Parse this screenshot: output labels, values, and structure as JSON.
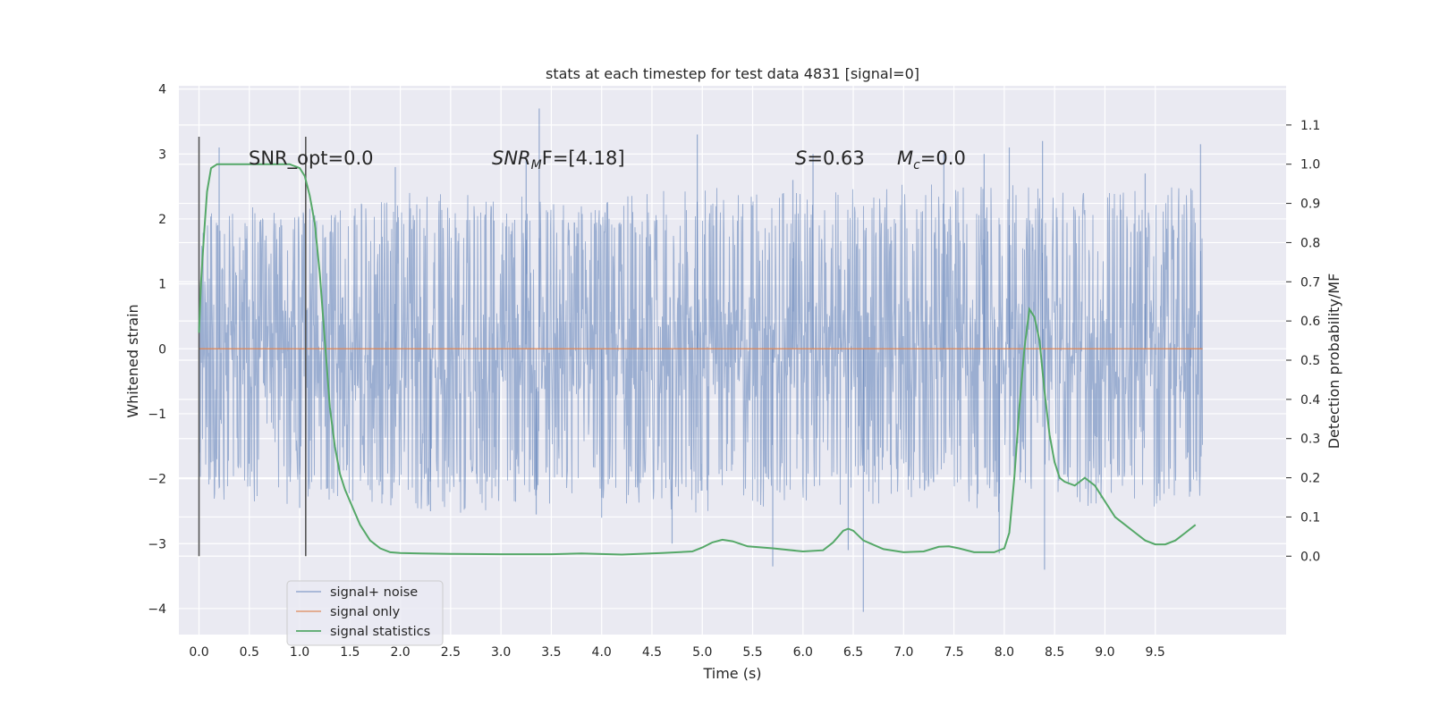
{
  "chart_data": {
    "type": "line",
    "title": "stats at each timestep for test data 4831 [signal=0]",
    "xlabel": "Time (s)",
    "ylabel": "Whitened strain",
    "y2label": "Detection probability/MF",
    "xlim": [
      -0.2,
      10.8
    ],
    "ylim": [
      -4.4,
      4.05
    ],
    "y2lim": [
      -0.2,
      1.2
    ],
    "x_ticks": [
      0.0,
      0.5,
      1.0,
      1.5,
      2.0,
      2.5,
      3.0,
      3.5,
      4.0,
      4.5,
      5.0,
      5.5,
      6.0,
      6.5,
      7.0,
      7.5,
      8.0,
      8.5,
      9.0,
      9.5
    ],
    "x_tick_labels": [
      "0.0",
      "0.5",
      "1.0",
      "1.5",
      "2.0",
      "2.5",
      "3.0",
      "3.5",
      "4.0",
      "4.5",
      "5.0",
      "5.5",
      "6.0",
      "6.5",
      "7.0",
      "7.5",
      "8.0",
      "8.5",
      "9.0",
      "9.5"
    ],
    "y_ticks": [
      -4,
      -3,
      -2,
      -1,
      0,
      1,
      2,
      3,
      4
    ],
    "y_tick_labels": [
      "−4",
      "−3",
      "−2",
      "−1",
      "0",
      "1",
      "2",
      "3",
      "4"
    ],
    "y2_ticks": [
      0.0,
      0.1,
      0.2,
      0.3,
      0.4,
      0.5,
      0.6,
      0.7,
      0.8,
      0.9,
      1.0,
      1.1
    ],
    "y2_tick_labels": [
      "0.0",
      "0.1",
      "0.2",
      "0.3",
      "0.4",
      "0.5",
      "0.6",
      "0.7",
      "0.8",
      "0.9",
      "1.0",
      "1.1"
    ],
    "grid": true,
    "legend_position": "lower-left",
    "annotations": {
      "snr_opt": "SNR_opt=0.0",
      "snr_mf_base": "SNR",
      "snr_mf_sub": "M",
      "snr_mf_rest": "F=[4.18]",
      "s_var": "S",
      "s_val": "=0.63",
      "mc_var": "M",
      "mc_sub": "c",
      "mc_val": "=0.0"
    },
    "vertical_markers": [
      0.0,
      1.06
    ],
    "series": [
      {
        "name": "signal+ noise",
        "color": "#4c72b0",
        "axis": "left",
        "kind": "noise",
        "x_range": [
          0.0,
          9.97
        ],
        "envelope": [
          [
            0.0,
            1.9,
            -2.1
          ],
          [
            1.0,
            2.1,
            -2.2
          ],
          [
            2.0,
            2.2,
            -2.3
          ],
          [
            3.0,
            2.2,
            -2.3
          ],
          [
            4.0,
            2.1,
            -2.2
          ],
          [
            5.0,
            2.3,
            -2.3
          ],
          [
            6.0,
            2.2,
            -2.2
          ],
          [
            7.0,
            2.3,
            -2.2
          ],
          [
            8.0,
            2.3,
            -2.3
          ],
          [
            9.0,
            2.2,
            -2.2
          ],
          [
            9.97,
            2.3,
            -2.3
          ]
        ],
        "spikes": [
          [
            0.2,
            3.1
          ],
          [
            1.0,
            -2.45
          ],
          [
            1.95,
            2.8
          ],
          [
            2.3,
            -2.5
          ],
          [
            3.25,
            2.9
          ],
          [
            3.38,
            3.7
          ],
          [
            3.35,
            -2.55
          ],
          [
            4.0,
            -2.6
          ],
          [
            4.95,
            3.3
          ],
          [
            4.7,
            -3.0
          ],
          [
            5.9,
            2.6
          ],
          [
            6.1,
            3.0
          ],
          [
            5.7,
            -3.35
          ],
          [
            6.6,
            -4.05
          ],
          [
            6.45,
            -3.1
          ],
          [
            7.4,
            3.0
          ],
          [
            7.8,
            3.0
          ],
          [
            7.95,
            -3.15
          ],
          [
            8.05,
            3.1
          ],
          [
            8.38,
            3.2
          ],
          [
            8.4,
            -3.4
          ],
          [
            9.4,
            2.7
          ],
          [
            9.95,
            3.15
          ],
          [
            9.85,
            -2.2
          ]
        ]
      },
      {
        "name": "signal only",
        "color": "#dd8452",
        "axis": "left",
        "x": [
          0.0,
          9.97
        ],
        "y": [
          0.0,
          0.0
        ]
      },
      {
        "name": "signal statistics",
        "color": "#55a868",
        "axis": "right",
        "x": [
          0.0,
          0.02,
          0.05,
          0.08,
          0.12,
          0.18,
          0.25,
          0.35,
          0.5,
          0.7,
          0.9,
          1.0,
          1.05,
          1.1,
          1.15,
          1.2,
          1.25,
          1.3,
          1.35,
          1.4,
          1.45,
          1.5,
          1.6,
          1.7,
          1.8,
          1.9,
          2.0,
          2.2,
          2.5,
          3.0,
          3.5,
          3.8,
          4.2,
          4.6,
          4.9,
          5.0,
          5.1,
          5.2,
          5.3,
          5.45,
          5.7,
          6.0,
          6.2,
          6.3,
          6.4,
          6.45,
          6.5,
          6.6,
          6.8,
          7.0,
          7.2,
          7.35,
          7.45,
          7.55,
          7.7,
          7.9,
          8.0,
          8.05,
          8.1,
          8.15,
          8.2,
          8.25,
          8.3,
          8.35,
          8.4,
          8.45,
          8.5,
          8.55,
          8.6,
          8.7,
          8.8,
          8.9,
          9.0,
          9.1,
          9.2,
          9.3,
          9.4,
          9.5,
          9.6,
          9.7,
          9.8,
          9.9
        ],
        "y": [
          0.57,
          0.7,
          0.82,
          0.93,
          0.99,
          1.0,
          1.0,
          1.0,
          1.0,
          1.0,
          1.0,
          0.99,
          0.97,
          0.92,
          0.85,
          0.72,
          0.55,
          0.38,
          0.28,
          0.21,
          0.17,
          0.14,
          0.08,
          0.04,
          0.02,
          0.01,
          0.008,
          0.007,
          0.006,
          0.005,
          0.005,
          0.007,
          0.004,
          0.008,
          0.012,
          0.022,
          0.035,
          0.042,
          0.038,
          0.025,
          0.02,
          0.012,
          0.015,
          0.035,
          0.065,
          0.07,
          0.065,
          0.04,
          0.018,
          0.01,
          0.012,
          0.024,
          0.025,
          0.02,
          0.01,
          0.01,
          0.02,
          0.06,
          0.2,
          0.38,
          0.53,
          0.63,
          0.61,
          0.55,
          0.42,
          0.31,
          0.24,
          0.2,
          0.19,
          0.18,
          0.2,
          0.18,
          0.14,
          0.1,
          0.08,
          0.06,
          0.04,
          0.03,
          0.03,
          0.04,
          0.06,
          0.08
        ]
      }
    ]
  }
}
